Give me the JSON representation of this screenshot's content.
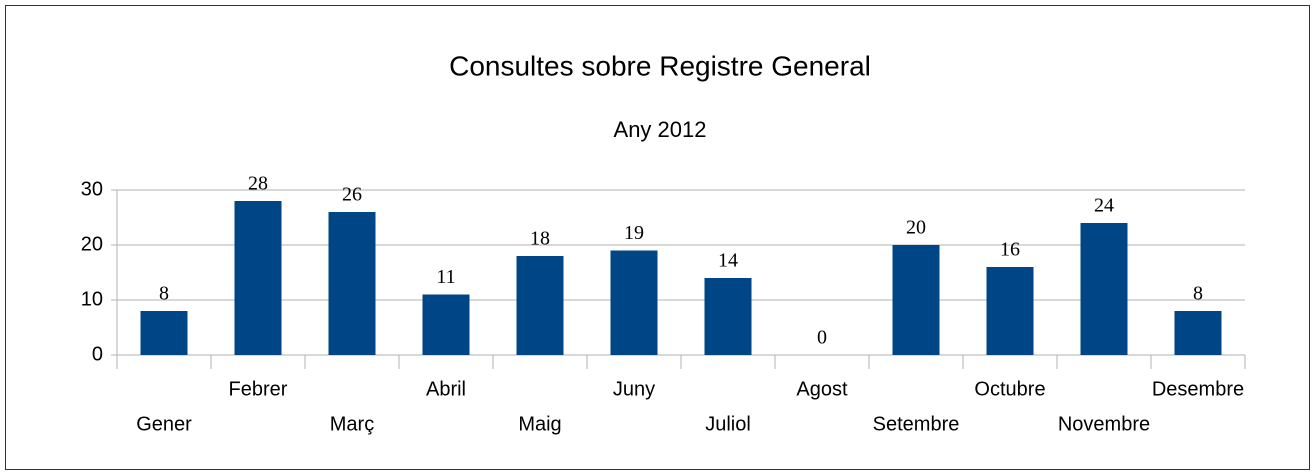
{
  "chart_data": {
    "type": "bar",
    "title": "Consultes sobre Registre General",
    "subtitle": "Any 2012",
    "categories": [
      "Gener",
      "Febrer",
      "Març",
      "Abril",
      "Maig",
      "Juny",
      "Juliol",
      "Agost",
      "Setembre",
      "Octubre",
      "Novembre",
      "Desembre"
    ],
    "values": [
      8,
      28,
      26,
      11,
      18,
      19,
      14,
      0,
      20,
      16,
      24,
      8
    ],
    "color": "#004586",
    "ylim": [
      0,
      30
    ],
    "yticks": [
      0,
      10,
      20,
      30
    ],
    "grid": true
  }
}
